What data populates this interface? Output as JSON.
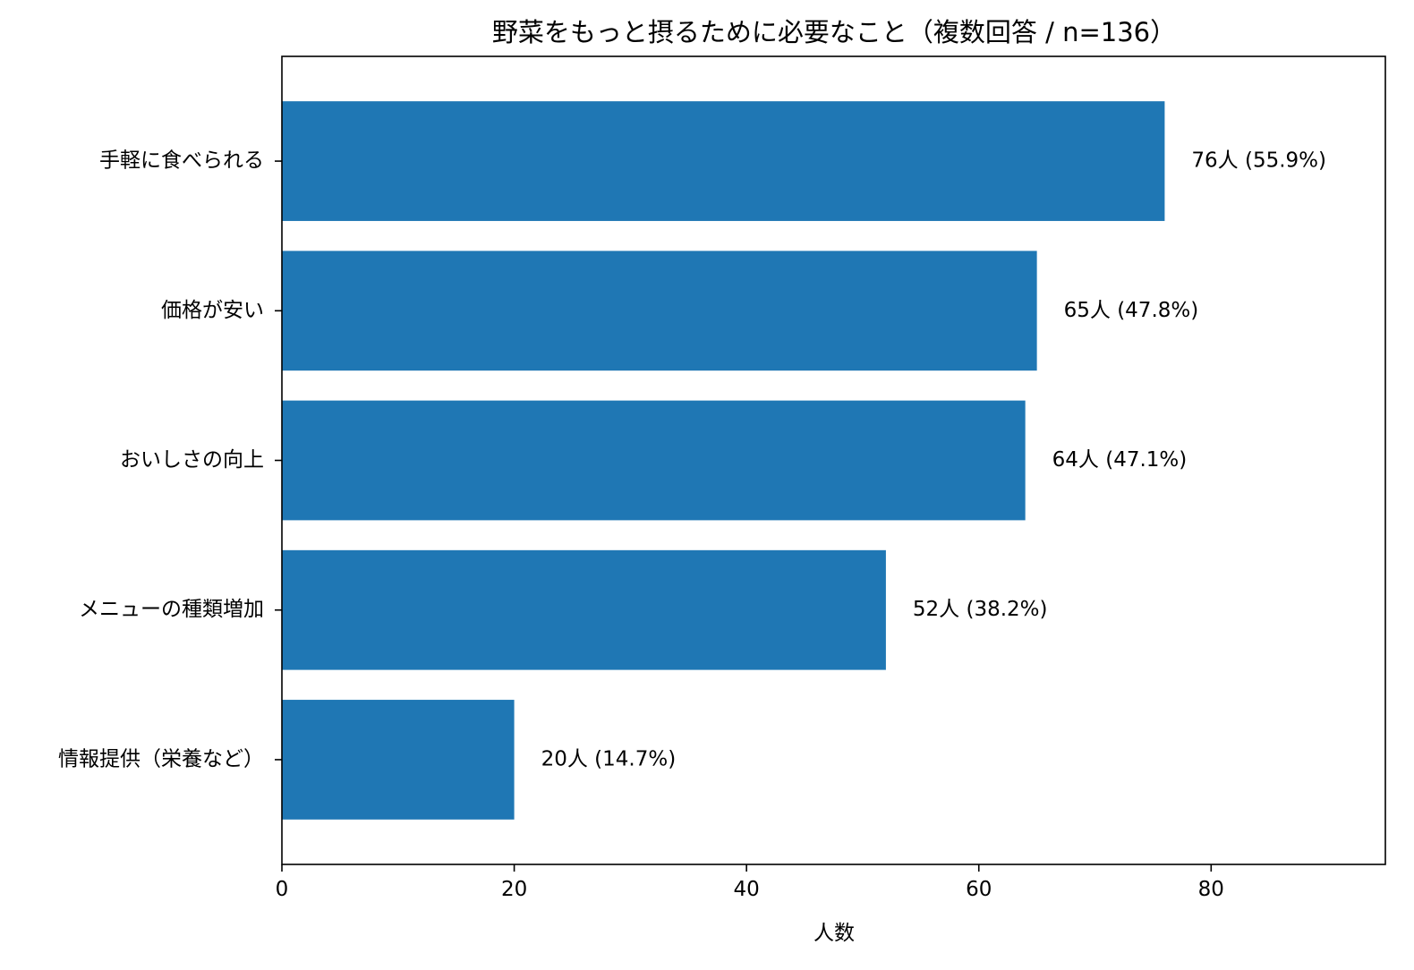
{
  "chart_data": {
    "type": "bar",
    "orientation": "horizontal",
    "title": "野菜をもっと摂るために必要なこと（複数回答 / n=136）",
    "xlabel": "人数",
    "ylabel": "",
    "xlim": [
      0,
      95
    ],
    "xticks": [
      "0",
      "20",
      "40",
      "60",
      "80"
    ],
    "categories": [
      "手軽に食べられる",
      "価格が安い",
      "おいしさの向上",
      "メニューの種類増加",
      "情報提供（栄養など）"
    ],
    "values": [
      76,
      65,
      64,
      52,
      20
    ],
    "value_labels": [
      "76人 (55.9%)",
      "65人 (47.8%)",
      "64人 (47.1%)",
      "52人 (38.2%)",
      "20人 (14.7%)"
    ],
    "bar_color": "#1f77b4",
    "grid": false,
    "legend": "none"
  }
}
